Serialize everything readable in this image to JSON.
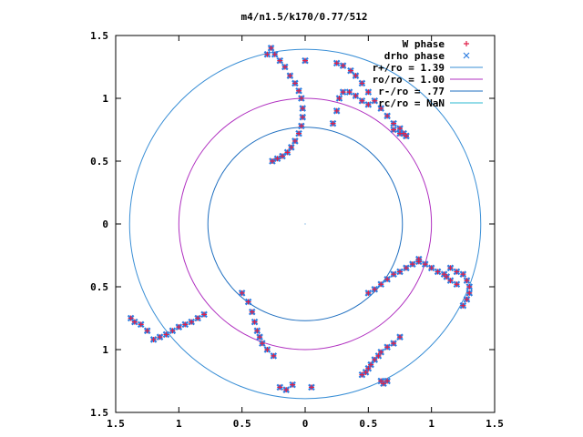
{
  "chart_data": {
    "type": "scatter",
    "title": "m4/n1.5/k170/0.77/512",
    "xlim": [
      -1.5,
      1.5
    ],
    "ylim": [
      -1.5,
      1.5
    ],
    "x_ticks": [
      -1.5,
      -1,
      -0.5,
      0,
      0.5,
      1,
      1.5
    ],
    "y_ticks": [
      -1.5,
      -1,
      -0.5,
      0,
      0.5,
      1,
      1.5
    ],
    "x_tick_labels": [
      "1.5",
      "1",
      "0.5",
      "0",
      "0.5",
      "1",
      "1.5"
    ],
    "y_tick_labels": [
      "1.5",
      "1",
      "0.5",
      "0",
      "0.5",
      "1",
      "1.5"
    ],
    "grid": false,
    "legend_position": "top-right",
    "series": [
      {
        "name": "W phase",
        "marker": "plus",
        "color": "#e0204a",
        "points": [
          [
            -0.3,
            1.35
          ],
          [
            -0.27,
            1.4
          ],
          [
            -0.24,
            1.35
          ],
          [
            -0.2,
            1.3
          ],
          [
            -0.16,
            1.25
          ],
          [
            -0.12,
            1.18
          ],
          [
            -0.08,
            1.12
          ],
          [
            -0.05,
            1.06
          ],
          [
            -0.03,
            1.0
          ],
          [
            -0.02,
            0.92
          ],
          [
            -0.02,
            0.85
          ],
          [
            -0.03,
            0.78
          ],
          [
            -0.05,
            0.72
          ],
          [
            -0.08,
            0.66
          ],
          [
            -0.11,
            0.61
          ],
          [
            -0.14,
            0.57
          ],
          [
            -0.18,
            0.54
          ],
          [
            -0.22,
            0.52
          ],
          [
            -0.26,
            0.5
          ],
          [
            0.0,
            1.3
          ],
          [
            0.25,
            1.28
          ],
          [
            0.3,
            1.26
          ],
          [
            0.36,
            1.22
          ],
          [
            0.4,
            1.18
          ],
          [
            0.45,
            1.12
          ],
          [
            0.5,
            1.05
          ],
          [
            0.55,
            0.98
          ],
          [
            0.6,
            0.92
          ],
          [
            0.65,
            0.86
          ],
          [
            0.7,
            0.8
          ],
          [
            0.75,
            0.76
          ],
          [
            0.78,
            0.72
          ],
          [
            0.8,
            0.7
          ],
          [
            0.22,
            0.8
          ],
          [
            0.25,
            0.9
          ],
          [
            0.27,
            1.0
          ],
          [
            0.3,
            1.05
          ],
          [
            0.35,
            1.05
          ],
          [
            0.4,
            1.02
          ],
          [
            0.45,
            0.98
          ],
          [
            0.5,
            0.95
          ],
          [
            0.7,
            0.75
          ],
          [
            0.75,
            0.72
          ],
          [
            0.8,
            0.7
          ],
          [
            1.15,
            -0.35
          ],
          [
            1.2,
            -0.38
          ],
          [
            1.25,
            -0.4
          ],
          [
            1.28,
            -0.45
          ],
          [
            1.3,
            -0.5
          ],
          [
            1.3,
            -0.55
          ],
          [
            1.28,
            -0.6
          ],
          [
            1.25,
            -0.65
          ],
          [
            0.9,
            -0.3
          ],
          [
            0.95,
            -0.32
          ],
          [
            1.0,
            -0.35
          ],
          [
            1.05,
            -0.38
          ],
          [
            1.1,
            -0.4
          ],
          [
            1.12,
            -0.42
          ],
          [
            1.15,
            -0.45
          ],
          [
            1.2,
            -0.48
          ],
          [
            0.5,
            -0.55
          ],
          [
            0.55,
            -0.52
          ],
          [
            0.6,
            -0.48
          ],
          [
            0.65,
            -0.44
          ],
          [
            0.7,
            -0.4
          ],
          [
            0.75,
            -0.38
          ],
          [
            0.8,
            -0.35
          ],
          [
            0.85,
            -0.32
          ],
          [
            0.9,
            -0.28
          ],
          [
            -0.5,
            -0.55
          ],
          [
            -0.45,
            -0.62
          ],
          [
            -0.42,
            -0.7
          ],
          [
            -0.4,
            -0.78
          ],
          [
            -0.38,
            -0.85
          ],
          [
            -0.36,
            -0.9
          ],
          [
            -0.34,
            -0.95
          ],
          [
            -0.3,
            -1.0
          ],
          [
            -0.25,
            -1.05
          ],
          [
            -0.8,
            -0.72
          ],
          [
            -0.85,
            -0.75
          ],
          [
            -0.9,
            -0.78
          ],
          [
            -0.95,
            -0.8
          ],
          [
            -1.0,
            -0.82
          ],
          [
            -1.05,
            -0.85
          ],
          [
            -1.1,
            -0.88
          ],
          [
            -1.15,
            -0.9
          ],
          [
            -1.2,
            -0.92
          ],
          [
            -1.25,
            -0.85
          ],
          [
            -1.3,
            -0.8
          ],
          [
            -1.35,
            -0.78
          ],
          [
            -1.38,
            -0.75
          ],
          [
            0.45,
            -1.2
          ],
          [
            0.48,
            -1.18
          ],
          [
            0.5,
            -1.15
          ],
          [
            0.52,
            -1.12
          ],
          [
            0.55,
            -1.08
          ],
          [
            0.58,
            -1.05
          ],
          [
            0.6,
            -1.02
          ],
          [
            0.65,
            -0.98
          ],
          [
            0.7,
            -0.95
          ],
          [
            0.75,
            -0.9
          ],
          [
            0.6,
            -1.25
          ],
          [
            0.62,
            -1.27
          ],
          [
            0.65,
            -1.25
          ],
          [
            -0.2,
            -1.3
          ],
          [
            -0.15,
            -1.32
          ],
          [
            -0.1,
            -1.28
          ],
          [
            0.05,
            -1.3
          ]
        ]
      },
      {
        "name": "drho phase",
        "marker": "cross",
        "color": "#2d7de0",
        "points": [
          [
            -0.3,
            1.35
          ],
          [
            -0.27,
            1.4
          ],
          [
            -0.24,
            1.35
          ],
          [
            -0.2,
            1.3
          ],
          [
            -0.16,
            1.25
          ],
          [
            -0.12,
            1.18
          ],
          [
            -0.08,
            1.12
          ],
          [
            -0.05,
            1.06
          ],
          [
            -0.03,
            1.0
          ],
          [
            -0.02,
            0.92
          ],
          [
            -0.02,
            0.85
          ],
          [
            -0.03,
            0.78
          ],
          [
            -0.05,
            0.72
          ],
          [
            -0.08,
            0.66
          ],
          [
            -0.11,
            0.61
          ],
          [
            -0.14,
            0.57
          ],
          [
            -0.18,
            0.54
          ],
          [
            -0.22,
            0.52
          ],
          [
            -0.26,
            0.5
          ],
          [
            0.0,
            1.3
          ],
          [
            0.25,
            1.28
          ],
          [
            0.3,
            1.26
          ],
          [
            0.36,
            1.22
          ],
          [
            0.4,
            1.18
          ],
          [
            0.45,
            1.12
          ],
          [
            0.5,
            1.05
          ],
          [
            0.55,
            0.98
          ],
          [
            0.6,
            0.92
          ],
          [
            0.65,
            0.86
          ],
          [
            0.7,
            0.8
          ],
          [
            0.75,
            0.76
          ],
          [
            0.78,
            0.72
          ],
          [
            0.8,
            0.7
          ],
          [
            0.22,
            0.8
          ],
          [
            0.25,
            0.9
          ],
          [
            0.27,
            1.0
          ],
          [
            0.3,
            1.05
          ],
          [
            0.35,
            1.05
          ],
          [
            0.4,
            1.02
          ],
          [
            0.45,
            0.98
          ],
          [
            0.5,
            0.95
          ],
          [
            0.7,
            0.75
          ],
          [
            0.75,
            0.72
          ],
          [
            0.8,
            0.7
          ],
          [
            1.15,
            -0.35
          ],
          [
            1.2,
            -0.38
          ],
          [
            1.25,
            -0.4
          ],
          [
            1.28,
            -0.45
          ],
          [
            1.3,
            -0.5
          ],
          [
            1.3,
            -0.55
          ],
          [
            1.28,
            -0.6
          ],
          [
            1.25,
            -0.65
          ],
          [
            0.9,
            -0.3
          ],
          [
            0.95,
            -0.32
          ],
          [
            1.0,
            -0.35
          ],
          [
            1.05,
            -0.38
          ],
          [
            1.1,
            -0.4
          ],
          [
            1.12,
            -0.42
          ],
          [
            1.15,
            -0.45
          ],
          [
            1.2,
            -0.48
          ],
          [
            0.5,
            -0.55
          ],
          [
            0.55,
            -0.52
          ],
          [
            0.6,
            -0.48
          ],
          [
            0.65,
            -0.44
          ],
          [
            0.7,
            -0.4
          ],
          [
            0.75,
            -0.38
          ],
          [
            0.8,
            -0.35
          ],
          [
            0.85,
            -0.32
          ],
          [
            0.9,
            -0.28
          ],
          [
            -0.5,
            -0.55
          ],
          [
            -0.45,
            -0.62
          ],
          [
            -0.42,
            -0.7
          ],
          [
            -0.4,
            -0.78
          ],
          [
            -0.38,
            -0.85
          ],
          [
            -0.36,
            -0.9
          ],
          [
            -0.34,
            -0.95
          ],
          [
            -0.3,
            -1.0
          ],
          [
            -0.25,
            -1.05
          ],
          [
            -0.8,
            -0.72
          ],
          [
            -0.85,
            -0.75
          ],
          [
            -0.9,
            -0.78
          ],
          [
            -0.95,
            -0.8
          ],
          [
            -1.0,
            -0.82
          ],
          [
            -1.05,
            -0.85
          ],
          [
            -1.1,
            -0.88
          ],
          [
            -1.15,
            -0.9
          ],
          [
            -1.2,
            -0.92
          ],
          [
            -1.25,
            -0.85
          ],
          [
            -1.3,
            -0.8
          ],
          [
            -1.35,
            -0.78
          ],
          [
            -1.38,
            -0.75
          ],
          [
            0.45,
            -1.2
          ],
          [
            0.48,
            -1.18
          ],
          [
            0.5,
            -1.15
          ],
          [
            0.52,
            -1.12
          ],
          [
            0.55,
            -1.08
          ],
          [
            0.58,
            -1.05
          ],
          [
            0.6,
            -1.02
          ],
          [
            0.65,
            -0.98
          ],
          [
            0.7,
            -0.95
          ],
          [
            0.75,
            -0.9
          ],
          [
            0.6,
            -1.25
          ],
          [
            0.62,
            -1.27
          ],
          [
            0.65,
            -1.25
          ],
          [
            -0.2,
            -1.3
          ],
          [
            -0.15,
            -1.32
          ],
          [
            -0.1,
            -1.28
          ],
          [
            0.05,
            -1.3
          ]
        ]
      },
      {
        "name": "r+/ro = 1.39",
        "type": "circle",
        "radius": 1.39,
        "color": "#3a8fd6"
      },
      {
        "name": "ro/ro = 1.00",
        "type": "circle",
        "radius": 1.0,
        "color": "#b030c0"
      },
      {
        "name": "r-/ro = .77",
        "type": "circle",
        "radius": 0.77,
        "color": "#1f6fc0"
      },
      {
        "name": "rc/ro = NaN",
        "type": "circle",
        "radius": null,
        "color": "#2ab8d0"
      }
    ]
  }
}
